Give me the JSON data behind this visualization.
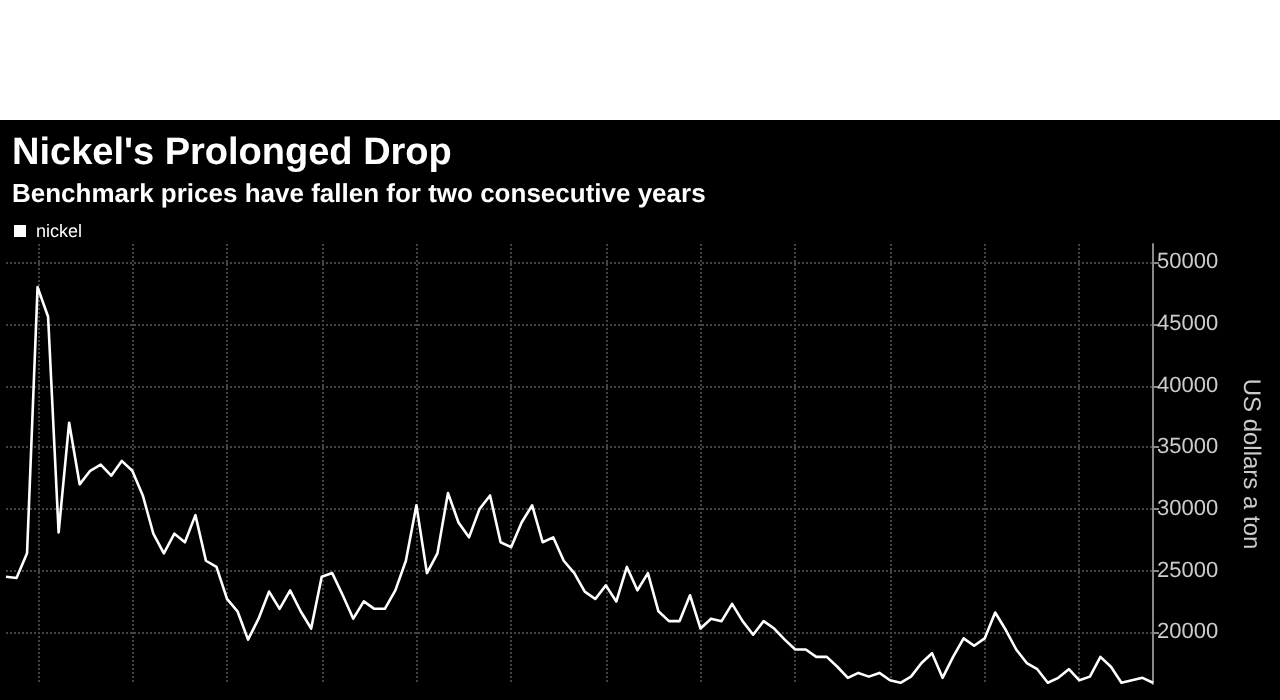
{
  "chart_data": {
    "type": "line",
    "title": "Nickel's Prolonged Drop",
    "subtitle": "Benchmark prices have fallen for two consecutive years",
    "ylabel": "US dollars a ton",
    "categories": [
      null,
      null,
      null,
      null,
      null,
      null,
      null,
      null,
      null,
      null,
      null,
      null,
      null,
      null,
      null,
      null,
      null,
      null,
      null,
      null,
      null,
      null,
      null,
      null,
      null,
      null,
      null,
      null,
      null,
      null,
      null,
      null,
      null,
      null,
      null,
      null,
      null,
      null,
      null,
      null,
      null,
      null,
      null,
      null,
      null,
      null,
      null,
      null,
      null,
      null,
      null,
      null,
      null,
      null,
      null,
      null,
      null,
      null,
      null,
      null,
      null,
      null,
      null,
      null,
      null,
      null,
      null,
      null,
      null,
      null,
      null,
      null,
      null,
      null,
      null,
      null,
      null,
      null,
      null,
      null,
      null,
      null,
      null,
      null,
      null,
      null,
      null,
      null,
      null,
      null,
      null,
      null,
      null,
      null,
      null,
      null,
      null,
      null,
      null,
      null,
      null,
      null,
      null,
      null,
      null,
      null,
      null,
      null,
      null,
      null
    ],
    "series": [
      {
        "name": "nickel",
        "color": "#ffffff",
        "values": [
          24500,
          24400,
          26400,
          48000,
          45600,
          28100,
          37000,
          32000,
          33100,
          33600,
          32700,
          33900,
          33100,
          31100,
          28000,
          26400,
          28000,
          27300,
          29500,
          25800,
          25300,
          22700,
          21700,
          19400,
          21100,
          23300,
          21900,
          23400,
          21700,
          20300,
          24500,
          24800,
          23000,
          21100,
          22500,
          21900,
          21900,
          23400,
          25800,
          30300,
          24800,
          26400,
          31300,
          28900,
          27700,
          30000,
          31100,
          27300,
          26900,
          28900,
          30300,
          27300,
          27700,
          25800,
          24800,
          23300,
          22700,
          23800,
          22500,
          25300,
          23400,
          24800,
          21700,
          20900,
          20900,
          23000,
          20300,
          21100,
          20900,
          22300,
          20900,
          19800,
          20900,
          20300,
          19400,
          18600,
          18600,
          18000,
          18000,
          17200,
          16300,
          16700,
          16400,
          16700,
          16100,
          15900,
          16400,
          17500,
          18300,
          16300,
          18000,
          19500,
          18900,
          19500,
          21600,
          20200,
          18600,
          17500,
          17000,
          15900,
          16300,
          17000,
          16100,
          16400,
          18000,
          17200,
          15900,
          16100,
          16300,
          15900
        ]
      }
    ],
    "ylim": [
      15800,
      51500
    ],
    "yticks": [
      20000,
      25000,
      30000,
      35000,
      40000,
      45000,
      50000
    ],
    "grid": true,
    "legend": "top left",
    "marker": "none",
    "line_style": "solid"
  }
}
